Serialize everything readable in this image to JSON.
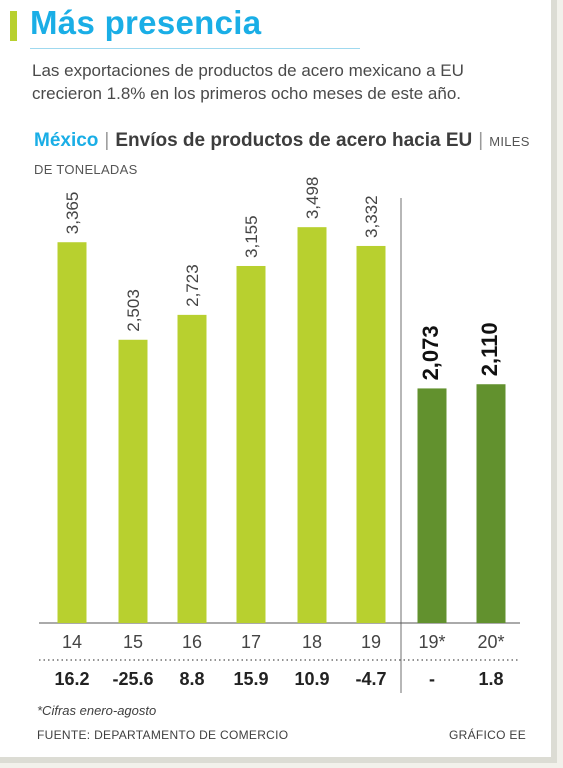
{
  "header": {
    "title": "Más presencia",
    "subtitle": "Las exportaciones de productos de acero mexicano a EU crecieron 1.8% en los primeros ocho meses de este año."
  },
  "chart_heading": {
    "country": "México",
    "title": "Envíos de productos de acero hacia EU",
    "unit": "MILES DE TONELADAS"
  },
  "colors": {
    "annual_bar": "#b8d02f",
    "partial_bar": "#62912e",
    "accent": "#1aaee6"
  },
  "chart_data": {
    "type": "bar",
    "title": "Envíos de productos de acero hacia EU",
    "ylabel": "MILES DE TONELADAS",
    "categories": [
      "14",
      "15",
      "16",
      "17",
      "18",
      "19",
      "19*",
      "20*"
    ],
    "values": [
      3365,
      2503,
      2723,
      3155,
      3498,
      3332,
      2073,
      2110
    ],
    "value_labels": [
      "3,365",
      "2,503",
      "2,723",
      "3,155",
      "3,498",
      "3,332",
      "2,073",
      "2,110"
    ],
    "growth_labels": [
      "16.2",
      "-25.6",
      "8.8",
      "15.9",
      "10.9",
      "-4.7",
      "-",
      "1.8"
    ],
    "partial_groups": [
      "19*",
      "20*"
    ],
    "ylim": [
      0,
      3800
    ],
    "grid": false,
    "legend": "none"
  },
  "footer": {
    "footnote": "*Cifras enero-agosto",
    "source": "FUENTE: DEPARTAMENTO DE COMERCIO",
    "credit": "GRÁFICO EE"
  }
}
